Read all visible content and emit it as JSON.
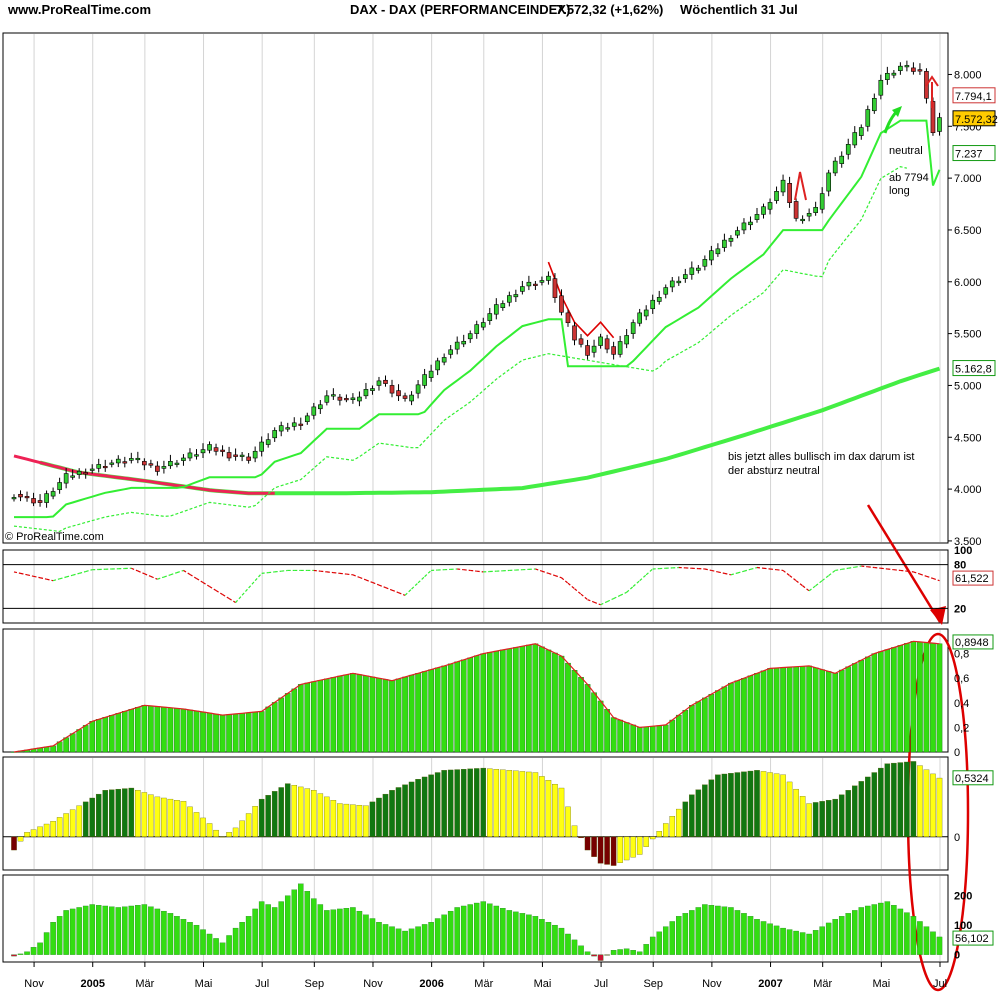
{
  "header": {
    "site": "www.ProRealTime.com",
    "instrument": "DAX - DAX (PERFORMANCEINDEX)",
    "quote": "7.572,32 (+1,62%)",
    "period": "Wöchentlich  31 Jul"
  },
  "watermark": "© ProRealTime.com",
  "annotations": {
    "neutral": "neutral",
    "ab_line1": "ab 7794",
    "ab_line2": "long",
    "note_line1": "bis jetzt alles bullisch im dax darum ist",
    "note_line2": "der absturz  neutral"
  },
  "colors": {
    "bull": "#33cc33",
    "bear": "#cc3333",
    "stop_green": "#33ee33",
    "stop_red": "#dd0000",
    "ma200": "#44ee44",
    "ma200_red": "#ee2255",
    "annotation_red": "#dd0000",
    "bar_green": "#33dd11",
    "bar_yellow": "#ffff11",
    "bar_dark": "#117711",
    "bar_maroon": "#770000"
  },
  "chart_data": [
    {
      "type": "candlestick",
      "panel": "price",
      "y_ticks": [
        "8.000",
        "7.500",
        "7.000",
        "6.500",
        "6.000",
        "5.500",
        "5.000",
        "4.500",
        "4.000",
        "3.500"
      ],
      "y_tick_values": [
        8000,
        7500,
        7000,
        6500,
        6000,
        5500,
        5000,
        4500,
        4000,
        3500
      ],
      "ylim": [
        3480,
        8400
      ],
      "weeks": 143,
      "labels": {
        "stop_high": "7.794,1",
        "last": "7.572,32",
        "stop_low": "7.237",
        "ma": "5.162,8"
      },
      "anchors": [
        [
          0,
          3950
        ],
        [
          4,
          3870
        ],
        [
          8,
          4120
        ],
        [
          14,
          4240
        ],
        [
          18,
          4290
        ],
        [
          22,
          4200
        ],
        [
          26,
          4300
        ],
        [
          30,
          4400
        ],
        [
          33,
          4330
        ],
        [
          36,
          4300
        ],
        [
          40,
          4560
        ],
        [
          44,
          4650
        ],
        [
          48,
          4900
        ],
        [
          52,
          4850
        ],
        [
          56,
          5050
        ],
        [
          60,
          4850
        ],
        [
          66,
          5300
        ],
        [
          70,
          5500
        ],
        [
          74,
          5750
        ],
        [
          78,
          5960
        ],
        [
          82,
          6030
        ],
        [
          84,
          5700
        ],
        [
          86,
          5450
        ],
        [
          88,
          5320
        ],
        [
          90,
          5450
        ],
        [
          92,
          5300
        ],
        [
          95,
          5600
        ],
        [
          100,
          5950
        ],
        [
          105,
          6150
        ],
        [
          110,
          6450
        ],
        [
          115,
          6700
        ],
        [
          118,
          6950
        ],
        [
          120,
          6600
        ],
        [
          123,
          6700
        ],
        [
          125,
          7050
        ],
        [
          130,
          7500
        ],
        [
          133,
          7950
        ],
        [
          136,
          8080
        ],
        [
          139,
          8030
        ],
        [
          141,
          7450
        ],
        [
          142,
          7572
        ]
      ]
    },
    {
      "type": "line",
      "panel": "oscillator",
      "y_ticks": [
        "100",
        "80",
        "20"
      ],
      "y_tick_values": [
        100,
        80,
        20
      ],
      "ylim": [
        0,
        100
      ],
      "last_value": "61,522",
      "anchors": [
        [
          0,
          70
        ],
        [
          6,
          58
        ],
        [
          12,
          73
        ],
        [
          18,
          75
        ],
        [
          22,
          60
        ],
        [
          26,
          72
        ],
        [
          30,
          50
        ],
        [
          34,
          28
        ],
        [
          38,
          68
        ],
        [
          42,
          72
        ],
        [
          46,
          72
        ],
        [
          52,
          66
        ],
        [
          56,
          52
        ],
        [
          60,
          38
        ],
        [
          64,
          72
        ],
        [
          68,
          74
        ],
        [
          72,
          70
        ],
        [
          76,
          72
        ],
        [
          80,
          74
        ],
        [
          84,
          62
        ],
        [
          88,
          32
        ],
        [
          90,
          25
        ],
        [
          94,
          42
        ],
        [
          98,
          74
        ],
        [
          102,
          76
        ],
        [
          106,
          74
        ],
        [
          110,
          66
        ],
        [
          114,
          76
        ],
        [
          118,
          72
        ],
        [
          122,
          44
        ],
        [
          126,
          72
        ],
        [
          130,
          78
        ],
        [
          134,
          74
        ],
        [
          138,
          70
        ],
        [
          142,
          58
        ]
      ]
    },
    {
      "type": "bar",
      "panel": "momentum",
      "y_ticks": [
        "0,8",
        "0,6",
        "0,4",
        "0,2",
        "0"
      ],
      "y_tick_values": [
        0.8,
        0.6,
        0.4,
        0.2,
        0
      ],
      "ylim": [
        0,
        1
      ],
      "last_value": "0,8948",
      "anchors": [
        [
          0,
          0.0
        ],
        [
          6,
          0.05
        ],
        [
          12,
          0.25
        ],
        [
          20,
          0.38
        ],
        [
          26,
          0.35
        ],
        [
          32,
          0.3
        ],
        [
          38,
          0.33
        ],
        [
          44,
          0.55
        ],
        [
          52,
          0.64
        ],
        [
          58,
          0.58
        ],
        [
          66,
          0.7
        ],
        [
          72,
          0.8
        ],
        [
          80,
          0.88
        ],
        [
          84,
          0.78
        ],
        [
          88,
          0.55
        ],
        [
          92,
          0.28
        ],
        [
          96,
          0.2
        ],
        [
          100,
          0.22
        ],
        [
          104,
          0.38
        ],
        [
          110,
          0.56
        ],
        [
          116,
          0.68
        ],
        [
          122,
          0.7
        ],
        [
          126,
          0.64
        ],
        [
          132,
          0.8
        ],
        [
          138,
          0.9
        ],
        [
          142,
          0.88
        ]
      ]
    },
    {
      "type": "bar",
      "panel": "histogram",
      "y_ticks": [
        "0"
      ],
      "y_tick_values": [
        0
      ],
      "ylim": [
        -0.3,
        0.72
      ],
      "last_value": "0,5324",
      "anchors": [
        [
          0,
          -0.12
        ],
        [
          2,
          0.04
        ],
        [
          6,
          0.14
        ],
        [
          10,
          0.28
        ],
        [
          14,
          0.42
        ],
        [
          18,
          0.44
        ],
        [
          22,
          0.36
        ],
        [
          26,
          0.32
        ],
        [
          30,
          0.12
        ],
        [
          32,
          0.0
        ],
        [
          34,
          0.08
        ],
        [
          38,
          0.34
        ],
        [
          42,
          0.48
        ],
        [
          46,
          0.42
        ],
        [
          50,
          0.3
        ],
        [
          54,
          0.28
        ],
        [
          58,
          0.42
        ],
        [
          62,
          0.52
        ],
        [
          66,
          0.6
        ],
        [
          72,
          0.62
        ],
        [
          76,
          0.6
        ],
        [
          80,
          0.58
        ],
        [
          84,
          0.44
        ],
        [
          86,
          0.1
        ],
        [
          88,
          -0.12
        ],
        [
          90,
          -0.24
        ],
        [
          92,
          -0.26
        ],
        [
          96,
          -0.16
        ],
        [
          100,
          0.12
        ],
        [
          104,
          0.38
        ],
        [
          108,
          0.56
        ],
        [
          114,
          0.6
        ],
        [
          118,
          0.56
        ],
        [
          122,
          0.3
        ],
        [
          126,
          0.34
        ],
        [
          130,
          0.5
        ],
        [
          134,
          0.66
        ],
        [
          138,
          0.68
        ],
        [
          142,
          0.53
        ]
      ]
    },
    {
      "type": "bar",
      "panel": "volume",
      "y_ticks": [
        "200",
        "100",
        "0"
      ],
      "y_tick_values": [
        200,
        100,
        0
      ],
      "ylim": [
        -25,
        270
      ],
      "last_value": "56,102",
      "anchors": [
        [
          0,
          -5
        ],
        [
          2,
          10
        ],
        [
          4,
          40
        ],
        [
          6,
          110
        ],
        [
          8,
          150
        ],
        [
          12,
          170
        ],
        [
          16,
          160
        ],
        [
          20,
          170
        ],
        [
          24,
          140
        ],
        [
          28,
          100
        ],
        [
          32,
          40
        ],
        [
          34,
          90
        ],
        [
          36,
          130
        ],
        [
          38,
          180
        ],
        [
          40,
          160
        ],
        [
          42,
          200
        ],
        [
          44,
          240
        ],
        [
          46,
          190
        ],
        [
          48,
          150
        ],
        [
          52,
          160
        ],
        [
          56,
          110
        ],
        [
          60,
          80
        ],
        [
          64,
          110
        ],
        [
          68,
          160
        ],
        [
          72,
          180
        ],
        [
          76,
          150
        ],
        [
          80,
          130
        ],
        [
          84,
          90
        ],
        [
          86,
          50
        ],
        [
          88,
          10
        ],
        [
          90,
          -20
        ],
        [
          92,
          15
        ],
        [
          94,
          20
        ],
        [
          96,
          10
        ],
        [
          98,
          60
        ],
        [
          102,
          130
        ],
        [
          106,
          170
        ],
        [
          110,
          160
        ],
        [
          114,
          120
        ],
        [
          118,
          90
        ],
        [
          122,
          70
        ],
        [
          126,
          120
        ],
        [
          130,
          160
        ],
        [
          134,
          180
        ],
        [
          138,
          130
        ],
        [
          142,
          60
        ]
      ]
    },
    {
      "type": "table",
      "panel": "x-axis",
      "x_labels": [
        "Nov",
        "2005",
        "Mär",
        "Mai",
        "Jul",
        "Sep",
        "Nov",
        "2006",
        "Mär",
        "Mai",
        "Jul",
        "Sep",
        "Nov",
        "2007",
        "Mär",
        "Mai",
        "Jul"
      ],
      "x_label_weeks": [
        4,
        13,
        21,
        30,
        39,
        47,
        56,
        65,
        73,
        82,
        91,
        99,
        108,
        117,
        125,
        134,
        143
      ],
      "bold_labels": [
        "2005",
        "2006",
        "2007"
      ]
    }
  ]
}
